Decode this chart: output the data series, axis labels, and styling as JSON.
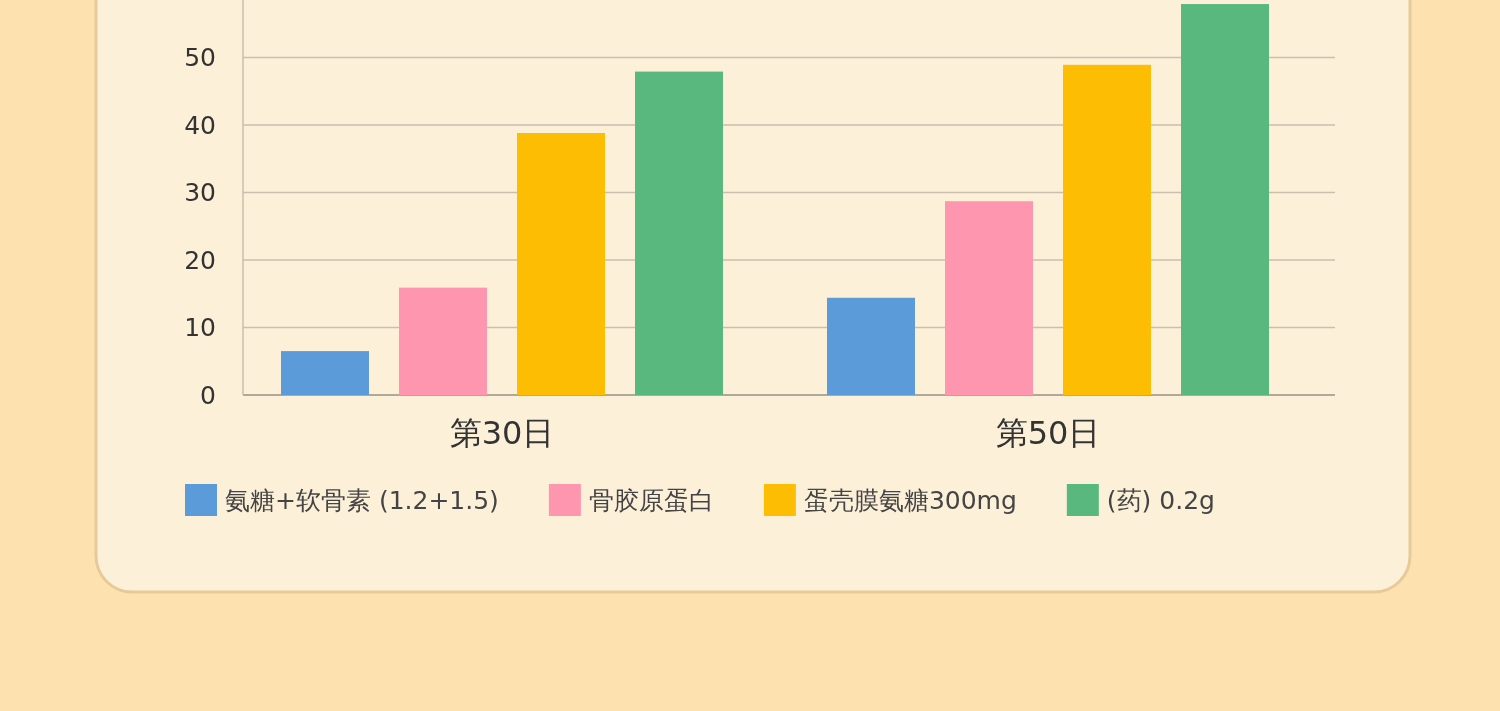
{
  "chart_data": {
    "type": "bar",
    "categories": [
      "第30日",
      "第50日"
    ],
    "series": [
      {
        "name": "氨糖+软骨素 (1.2+1.5)",
        "color": "#5b9bd9",
        "values": [
          6.5,
          14.4
        ]
      },
      {
        "name": "骨胶原蛋白",
        "color": "#fd96ae",
        "values": [
          15.9,
          28.7
        ]
      },
      {
        "name": "蛋壳膜氨糖300mg",
        "color": "#fdbd03",
        "values": [
          38.8,
          48.9
        ]
      },
      {
        "name": "(药) 0.2g",
        "color": "#58b87e",
        "values": [
          47.9,
          57.9
        ]
      }
    ],
    "ylim": [
      0,
      58.5
    ],
    "yticks": [
      0,
      10,
      20,
      30,
      40,
      50
    ],
    "grid": "y",
    "legend": "bottom"
  }
}
